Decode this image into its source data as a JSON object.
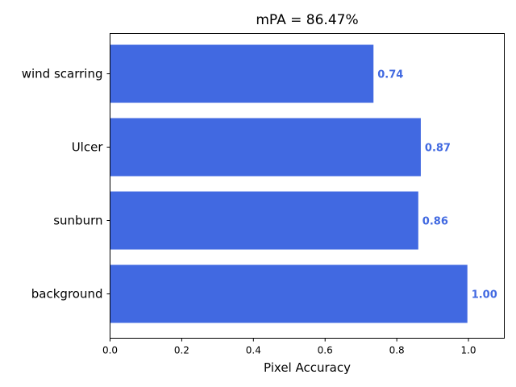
{
  "chart_data": {
    "type": "bar",
    "orientation": "horizontal",
    "title": "mPA = 86.47%",
    "xlabel": "Pixel Accuracy",
    "ylabel": "",
    "categories": [
      "wind scarring",
      "Ulcer",
      "sunburn",
      "background"
    ],
    "values": [
      0.735,
      0.867,
      0.86,
      0.997
    ],
    "value_labels": [
      "0.74",
      "0.87",
      "0.86",
      "1.00"
    ],
    "xlim": [
      0,
      1.1
    ],
    "xticks": [
      0.0,
      0.2,
      0.4,
      0.6,
      0.8,
      1.0
    ],
    "xtick_labels": [
      "0.0",
      "0.2",
      "0.4",
      "0.6",
      "0.8",
      "1.0"
    ],
    "bar_color": "#4169E1",
    "label_color": "#4169E1",
    "grid": false,
    "legend": "none"
  }
}
